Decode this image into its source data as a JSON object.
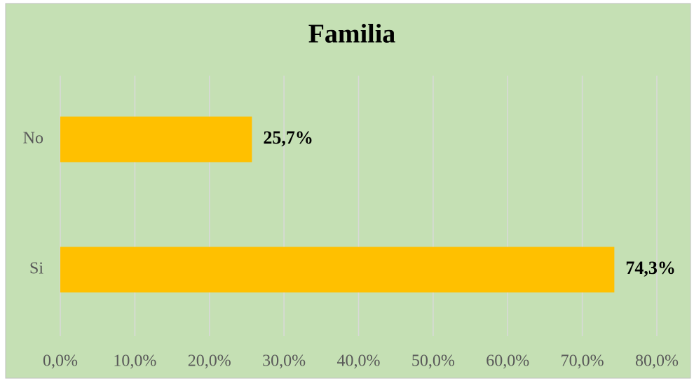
{
  "chart_data": {
    "type": "bar",
    "orientation": "horizontal",
    "title": "Familia",
    "categories": [
      "No",
      "Si"
    ],
    "values": [
      25.7,
      74.3
    ],
    "value_labels": [
      "25,7%",
      "74,3%"
    ],
    "color": "#ffc000",
    "background": "#c5e0b4",
    "xlim": [
      0,
      80
    ],
    "xticks": [
      {
        "value": 0,
        "label": "0,0%"
      },
      {
        "value": 10,
        "label": "10,0%"
      },
      {
        "value": 20,
        "label": "20,0%"
      },
      {
        "value": 30,
        "label": "30,0%"
      },
      {
        "value": 40,
        "label": "40,0%"
      },
      {
        "value": 50,
        "label": "50,0%"
      },
      {
        "value": 60,
        "label": "60,0%"
      },
      {
        "value": 70,
        "label": "70,0%"
      },
      {
        "value": 80,
        "label": "80,0%"
      }
    ],
    "grid": true
  }
}
